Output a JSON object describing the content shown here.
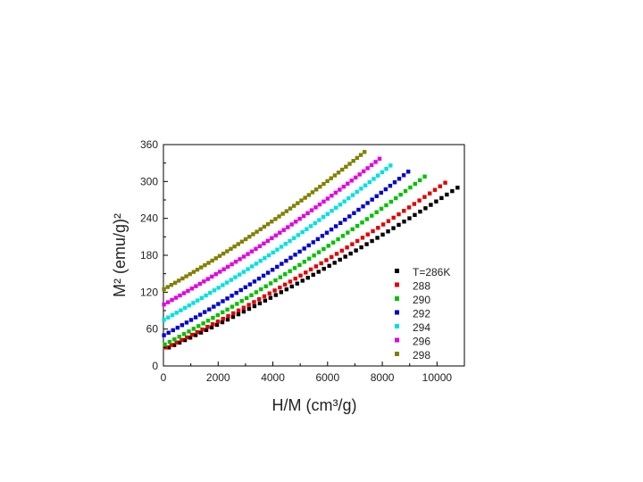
{
  "chart_data": {
    "type": "scatter",
    "title": "",
    "xlabel": "H/M (cm³/g)",
    "ylabel": "M² (emu/g)²",
    "xlim": [
      0,
      11000
    ],
    "ylim": [
      0,
      360
    ],
    "x_ticks": [
      "0",
      "2000",
      "4000",
      "6000",
      "8000",
      "10000"
    ],
    "y_ticks": [
      "0",
      "60",
      "120",
      "180",
      "240",
      "300",
      "360"
    ],
    "grid": false,
    "legend_position": "bottom-right",
    "series": [
      {
        "name": "T=286K",
        "color": "#000000",
        "x_start": 200,
        "y_start": 30,
        "x_end": 10750,
        "y_end": 290
      },
      {
        "name": "288",
        "color": "#e00000",
        "x_start": 100,
        "y_start": 30,
        "x_end": 10300,
        "y_end": 298
      },
      {
        "name": "290",
        "color": "#00c000",
        "x_start": 50,
        "y_start": 35,
        "x_end": 9550,
        "y_end": 308
      },
      {
        "name": "292",
        "color": "#0000d0",
        "x_start": 20,
        "y_start": 50,
        "x_end": 8950,
        "y_end": 316
      },
      {
        "name": "294",
        "color": "#00e0e0",
        "x_start": 20,
        "y_start": 75,
        "x_end": 8300,
        "y_end": 326
      },
      {
        "name": "296",
        "color": "#e000e0",
        "x_start": 20,
        "y_start": 100,
        "x_end": 7900,
        "y_end": 337
      },
      {
        "name": "298",
        "color": "#808000",
        "x_start": 20,
        "y_start": 125,
        "x_end": 7350,
        "y_end": 348
      }
    ]
  }
}
